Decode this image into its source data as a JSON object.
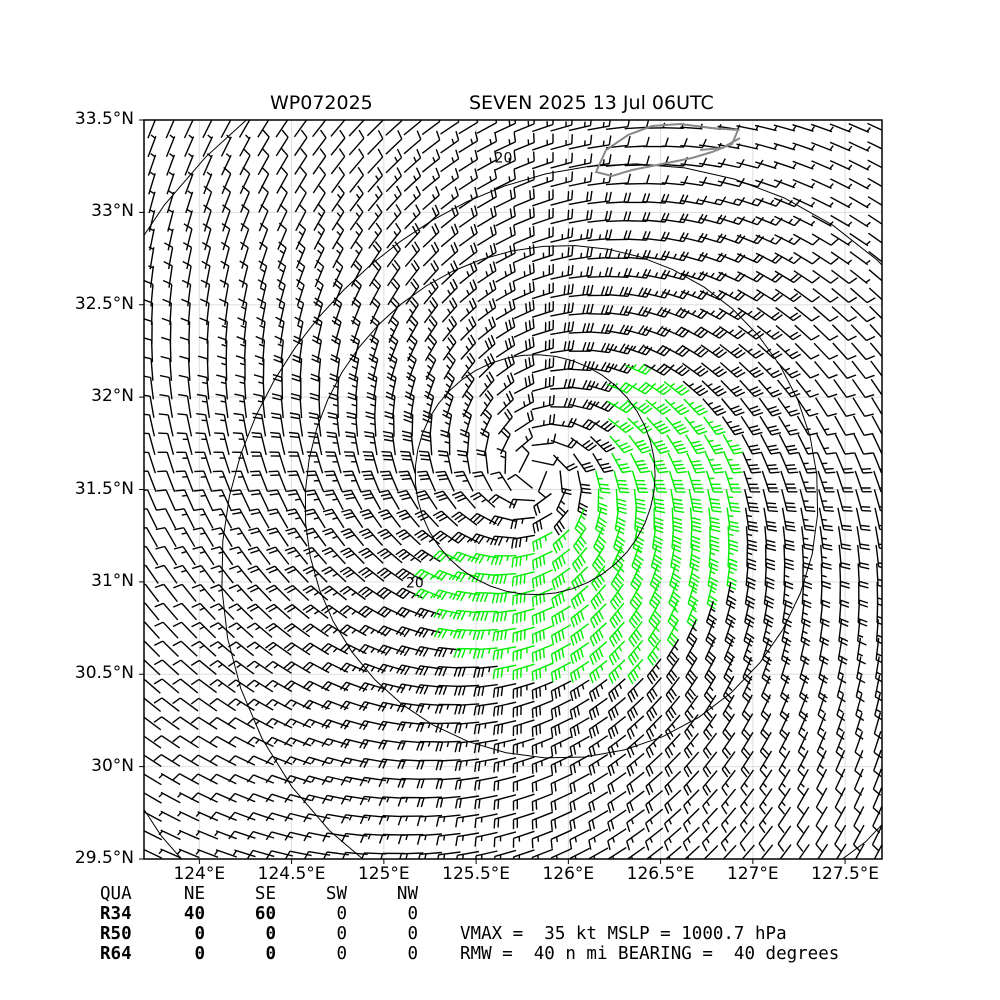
{
  "title": {
    "storm_id": "WP072025",
    "storm_info": "SEVEN 2025 13 Jul 06UTC"
  },
  "map": {
    "lon_range": [
      123.7,
      127.7
    ],
    "lat_range": [
      29.5,
      33.5
    ],
    "lat_ticks": [
      {
        "value": 33.5,
        "label": "33.5°N"
      },
      {
        "value": 33.0,
        "label": "33°N"
      },
      {
        "value": 32.5,
        "label": "32.5°N"
      },
      {
        "value": 32.0,
        "label": "32°N"
      },
      {
        "value": 31.5,
        "label": "31.5°N"
      },
      {
        "value": 31.0,
        "label": "31°N"
      },
      {
        "value": 30.5,
        "label": "30.5°N"
      },
      {
        "value": 30.0,
        "label": "30°N"
      },
      {
        "value": 29.5,
        "label": "29.5°N"
      }
    ],
    "lon_ticks": [
      {
        "value": 124.0,
        "label": "124°E"
      },
      {
        "value": 124.5,
        "label": "124.5°E"
      },
      {
        "value": 125.0,
        "label": "125°E"
      },
      {
        "value": 125.5,
        "label": "125.5°E"
      },
      {
        "value": 126.0,
        "label": "126°E"
      },
      {
        "value": 126.5,
        "label": "126.5°E"
      },
      {
        "value": 127.0,
        "label": "127°E"
      },
      {
        "value": 127.5,
        "label": "127.5°E"
      }
    ],
    "grid": true,
    "storm_center": {
      "lon": 125.82,
      "lat": 31.58
    },
    "contour_labels": [
      {
        "text": "20",
        "lon": 125.6,
        "lat": 33.27
      },
      {
        "text": "20",
        "lon": 125.12,
        "lat": 30.97
      }
    ],
    "wind_colors": {
      "calm": "#000000",
      "gale": "#00ee00",
      "storm": "#ffa500",
      "coast": "#888888"
    }
  },
  "quadrants": {
    "header": [
      "QUA",
      "NE",
      "SE",
      "SW",
      "NW"
    ],
    "rows": [
      {
        "label": "R34",
        "values": [
          "40",
          "60",
          "0",
          "0"
        ]
      },
      {
        "label": "R50",
        "values": [
          "0",
          "0",
          "0",
          "0"
        ]
      },
      {
        "label": "R64",
        "values": [
          "0",
          "0",
          "0",
          "0"
        ]
      }
    ]
  },
  "stats": {
    "line1": "VMAX =  35 kt MSLP = 1000.7 hPa",
    "line2": "RMW =  40 n mi BEARING =  40 degrees"
  }
}
